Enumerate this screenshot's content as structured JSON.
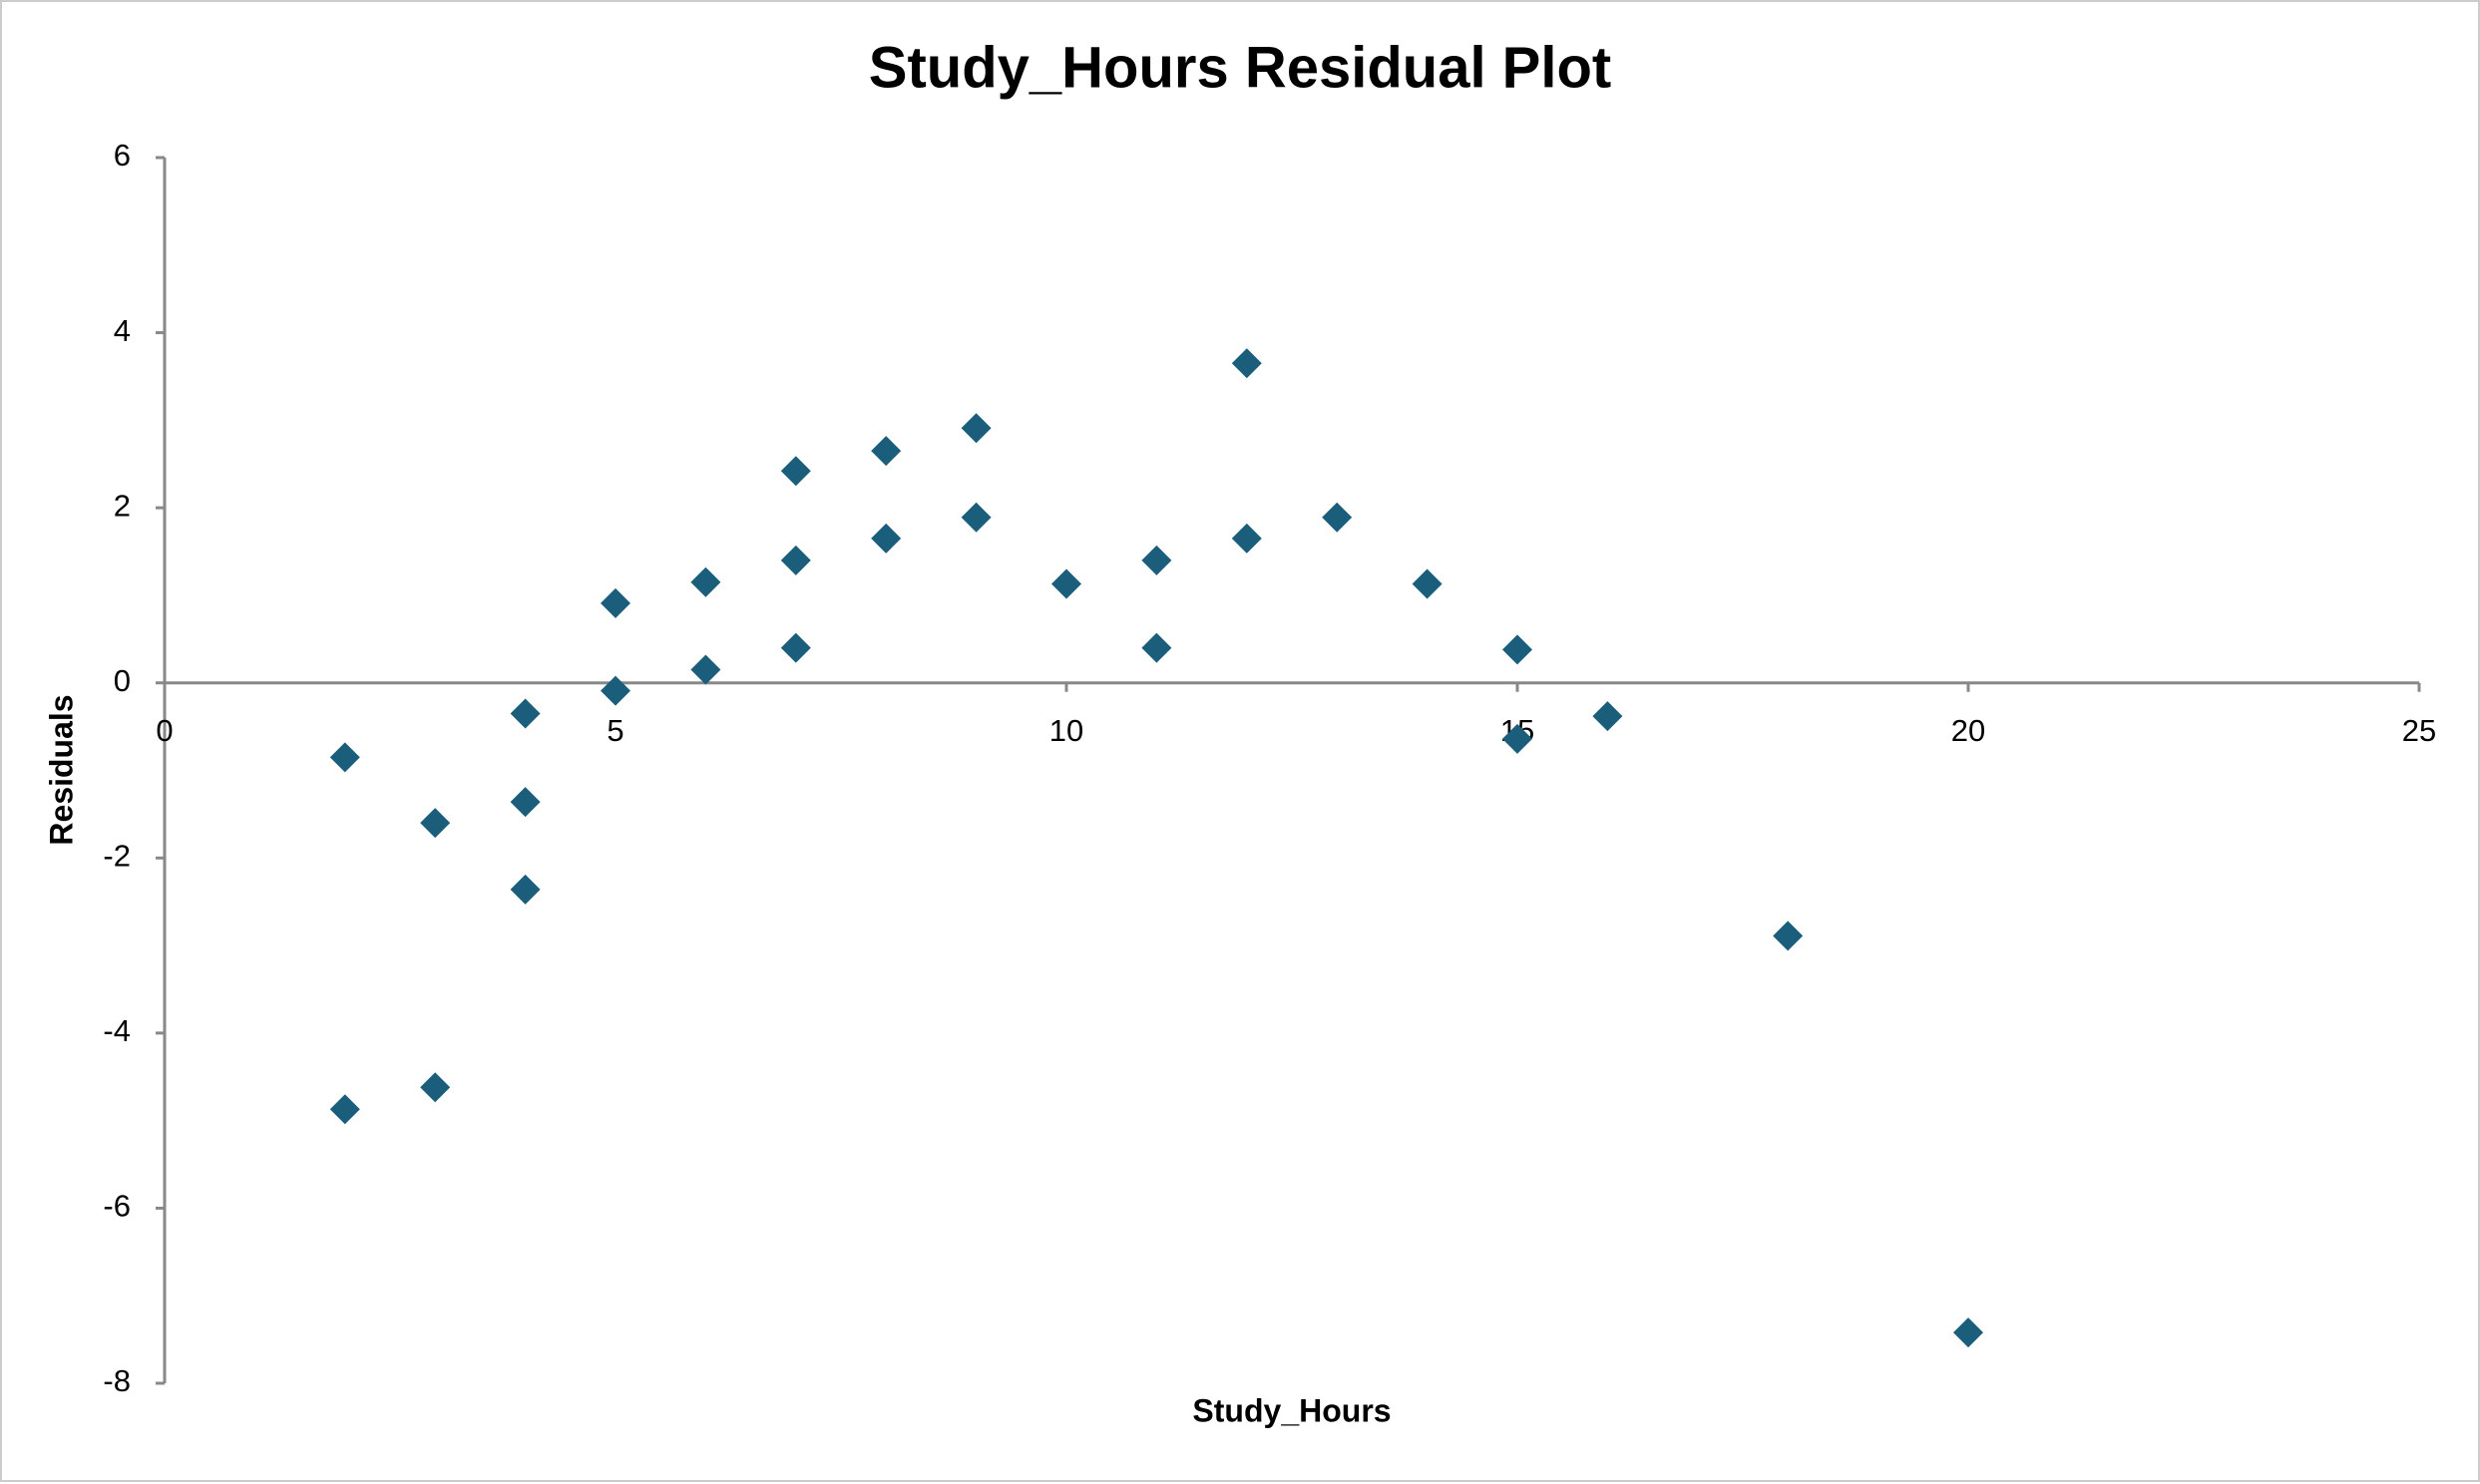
{
  "chart_data": {
    "type": "scatter",
    "title": "Study_Hours Residual Plot",
    "x_label": "Study_Hours",
    "y_label": "Residuals",
    "x": [
      2,
      2,
      3,
      3,
      4,
      4,
      4,
      5,
      5,
      6,
      6,
      7,
      7,
      7,
      8,
      8,
      9,
      9,
      10,
      11,
      11,
      12,
      12,
      13,
      14,
      15,
      15,
      16,
      18,
      20
    ],
    "values": [
      -0.85,
      -4.87,
      -1.6,
      -4.62,
      -0.35,
      -1.36,
      -2.36,
      0.91,
      -0.09,
      1.15,
      0.15,
      2.42,
      1.4,
      0.4,
      2.65,
      1.65,
      2.91,
      1.89,
      1.13,
      1.4,
      0.4,
      3.65,
      1.65,
      1.89,
      1.13,
      0.38,
      -0.64,
      -0.38,
      -2.89,
      -7.42
    ],
    "color": "#1b5e7b",
    "xlim": [
      0,
      25
    ],
    "xticks": [
      0,
      5,
      10,
      15,
      20,
      25
    ],
    "ylim": [
      -8,
      6
    ],
    "yticks": [
      -8,
      -6,
      -4,
      -2,
      0,
      2,
      4,
      6
    ]
  }
}
